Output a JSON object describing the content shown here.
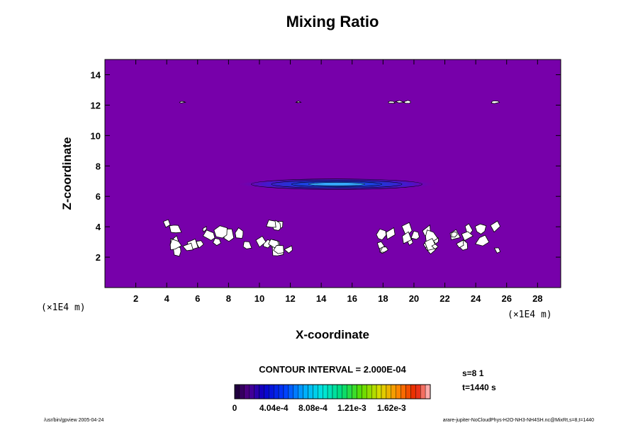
{
  "chart_data": {
    "type": "heatmap",
    "title": "Mixing Ratio",
    "xlabel": "X-coordinate",
    "ylabel": "Z-coordinate",
    "x_unit": "(×1E4 m)",
    "y_unit": "(×1E4 m)",
    "xlim": [
      0,
      29.5
    ],
    "ylim": [
      0,
      15
    ],
    "x_ticks": [
      2,
      4,
      6,
      8,
      10,
      12,
      14,
      16,
      18,
      20,
      22,
      24,
      26,
      28
    ],
    "y_ticks": [
      2,
      4,
      6,
      8,
      10,
      12,
      14
    ],
    "background_value": 0,
    "features": [
      {
        "kind": "maximum",
        "x_center": 15,
        "z_center": 6.8,
        "x_halfwidth": 6.5,
        "z_halfwidth": 0.4
      },
      {
        "kind": "missing-patches",
        "x_range": [
          4,
          12
        ],
        "z_range": [
          2,
          4.8
        ]
      },
      {
        "kind": "missing-patches",
        "x_range": [
          17.5,
          25.8
        ],
        "z_range": [
          2,
          4.8
        ]
      },
      {
        "kind": "missing-patches",
        "x_range": [
          4,
          25.8
        ],
        "z_range": [
          12.1,
          12.3
        ]
      }
    ],
    "contour_interval": "CONTOUR INTERVAL = 2.000E-04",
    "colorbar": {
      "labels": [
        "0",
        "4.04e-4",
        "8.08e-4",
        "1.21e-3",
        "1.62e-3"
      ],
      "min": 0,
      "max": 0.00202,
      "levels": 40
    }
  },
  "info": {
    "step": "s=8 1",
    "time": "t=1440 s"
  },
  "footer": {
    "left": "/usr/bin/gpview 2005-04-24",
    "right": "arare-jupiter-NoCloudPhys-H2O-NH3-NH4SH.nc@MixRt,s=8,t=1440"
  },
  "colors": {
    "background": "#7700AA",
    "missing": "#FFFFFF"
  }
}
